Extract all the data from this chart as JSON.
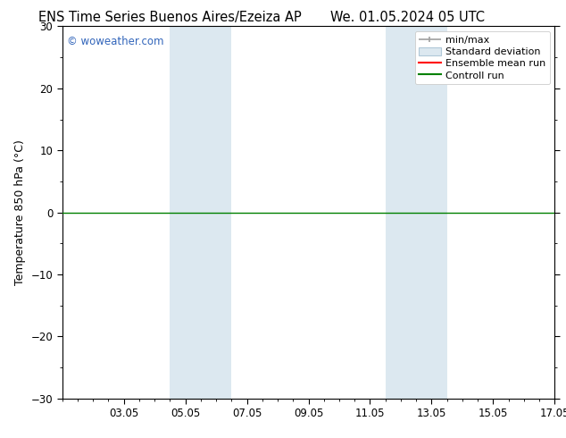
{
  "title_left": "ENS Time Series Buenos Aires/Ezeiza AP",
  "title_right": "We. 01.05.2024 05 UTC",
  "ylabel": "Temperature 850 hPa (°C)",
  "ylim": [
    -30,
    30
  ],
  "yticks": [
    -30,
    -20,
    -10,
    0,
    10,
    20,
    30
  ],
  "xlim_start": 0,
  "xlim_end": 16,
  "xtick_labels": [
    "03.05",
    "05.05",
    "07.05",
    "09.05",
    "11.05",
    "13.05",
    "15.05",
    "17.05"
  ],
  "xtick_positions": [
    2,
    4,
    6,
    8,
    10,
    12,
    14,
    16
  ],
  "shaded_bands": [
    {
      "xstart": 3.5,
      "xend": 5.5
    },
    {
      "xstart": 10.5,
      "xend": 12.5
    }
  ],
  "control_run_y": 0,
  "control_run_color": "#008000",
  "ensemble_mean_color": "#ff0000",
  "minmax_color": "#a0a0a0",
  "stddev_color": "#dce8f0",
  "watermark": "© woweather.com",
  "watermark_color": "#3366bb",
  "background_color": "#ffffff",
  "legend_labels": [
    "min/max",
    "Standard deviation",
    "Ensemble mean run",
    "Controll run"
  ],
  "legend_colors_line": [
    "#a0a0a0",
    null,
    "#ff0000",
    "#008000"
  ],
  "title_fontsize": 10.5,
  "axis_label_fontsize": 9,
  "tick_fontsize": 8.5,
  "legend_fontsize": 8
}
